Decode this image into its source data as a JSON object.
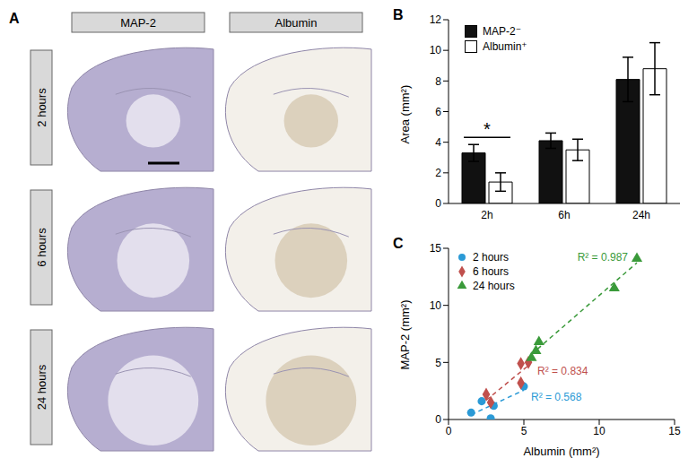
{
  "panel_a": {
    "label": "A",
    "columns": [
      "MAP-2",
      "Albumin"
    ],
    "rows": [
      "2 hours",
      "6 hours",
      "24 hours"
    ]
  },
  "chart_data": [
    {
      "panel": "B",
      "type": "bar",
      "categories": [
        "2h",
        "6h",
        "24h"
      ],
      "series": [
        {
          "name": "MAP-2⁻",
          "color": "#111111",
          "values": [
            3.3,
            4.1,
            8.1
          ],
          "errors": [
            0.55,
            0.5,
            1.45
          ]
        },
        {
          "name": "Albumin⁺",
          "color": "#ffffff",
          "values": [
            1.4,
            3.5,
            8.8
          ],
          "errors": [
            0.6,
            0.7,
            1.7
          ]
        }
      ],
      "y_label": "Area (mm²)",
      "ylim": [
        0,
        12
      ],
      "yticks": [
        0,
        2,
        4,
        6,
        8,
        10,
        12
      ],
      "legend": "upper left",
      "grid": false,
      "annotations": [
        {
          "text": "*",
          "category": "2h"
        }
      ]
    },
    {
      "panel": "C",
      "type": "scatter",
      "x_label": "Albumin (mm²)",
      "y_label": "MAP-2 (mm²)",
      "xlim": [
        0,
        15
      ],
      "xticks": [
        0,
        5,
        10,
        15
      ],
      "ylim": [
        0,
        15
      ],
      "yticks": [
        0,
        5,
        10,
        15
      ],
      "legend": "upper left",
      "grid": false,
      "series": [
        {
          "name": "2 hours",
          "color": "#2b9ad6",
          "marker": "circle",
          "line_style": "dashed",
          "r_squared_label": "R² = 0.568",
          "x": [
            1.5,
            2.2,
            2.8,
            3.0,
            5.0
          ],
          "values": [
            0.6,
            1.6,
            0.1,
            1.2,
            2.9
          ]
        },
        {
          "name": "6 hours",
          "color": "#c0504d",
          "marker": "diamond",
          "line_style": "dashed",
          "r_squared_label": "R² = 0.834",
          "x": [
            2.5,
            2.8,
            4.8,
            4.8,
            5.3
          ],
          "values": [
            2.2,
            1.5,
            3.2,
            4.9,
            5.0
          ]
        },
        {
          "name": "24 hours",
          "color": "#3a9a3a",
          "marker": "triangle",
          "line_style": "dashed",
          "r_squared_label": "R² = 0.987",
          "x": [
            5.5,
            5.8,
            6.0,
            11.0,
            12.5
          ],
          "values": [
            5.4,
            6.0,
            6.8,
            11.5,
            14.1
          ]
        }
      ]
    }
  ]
}
